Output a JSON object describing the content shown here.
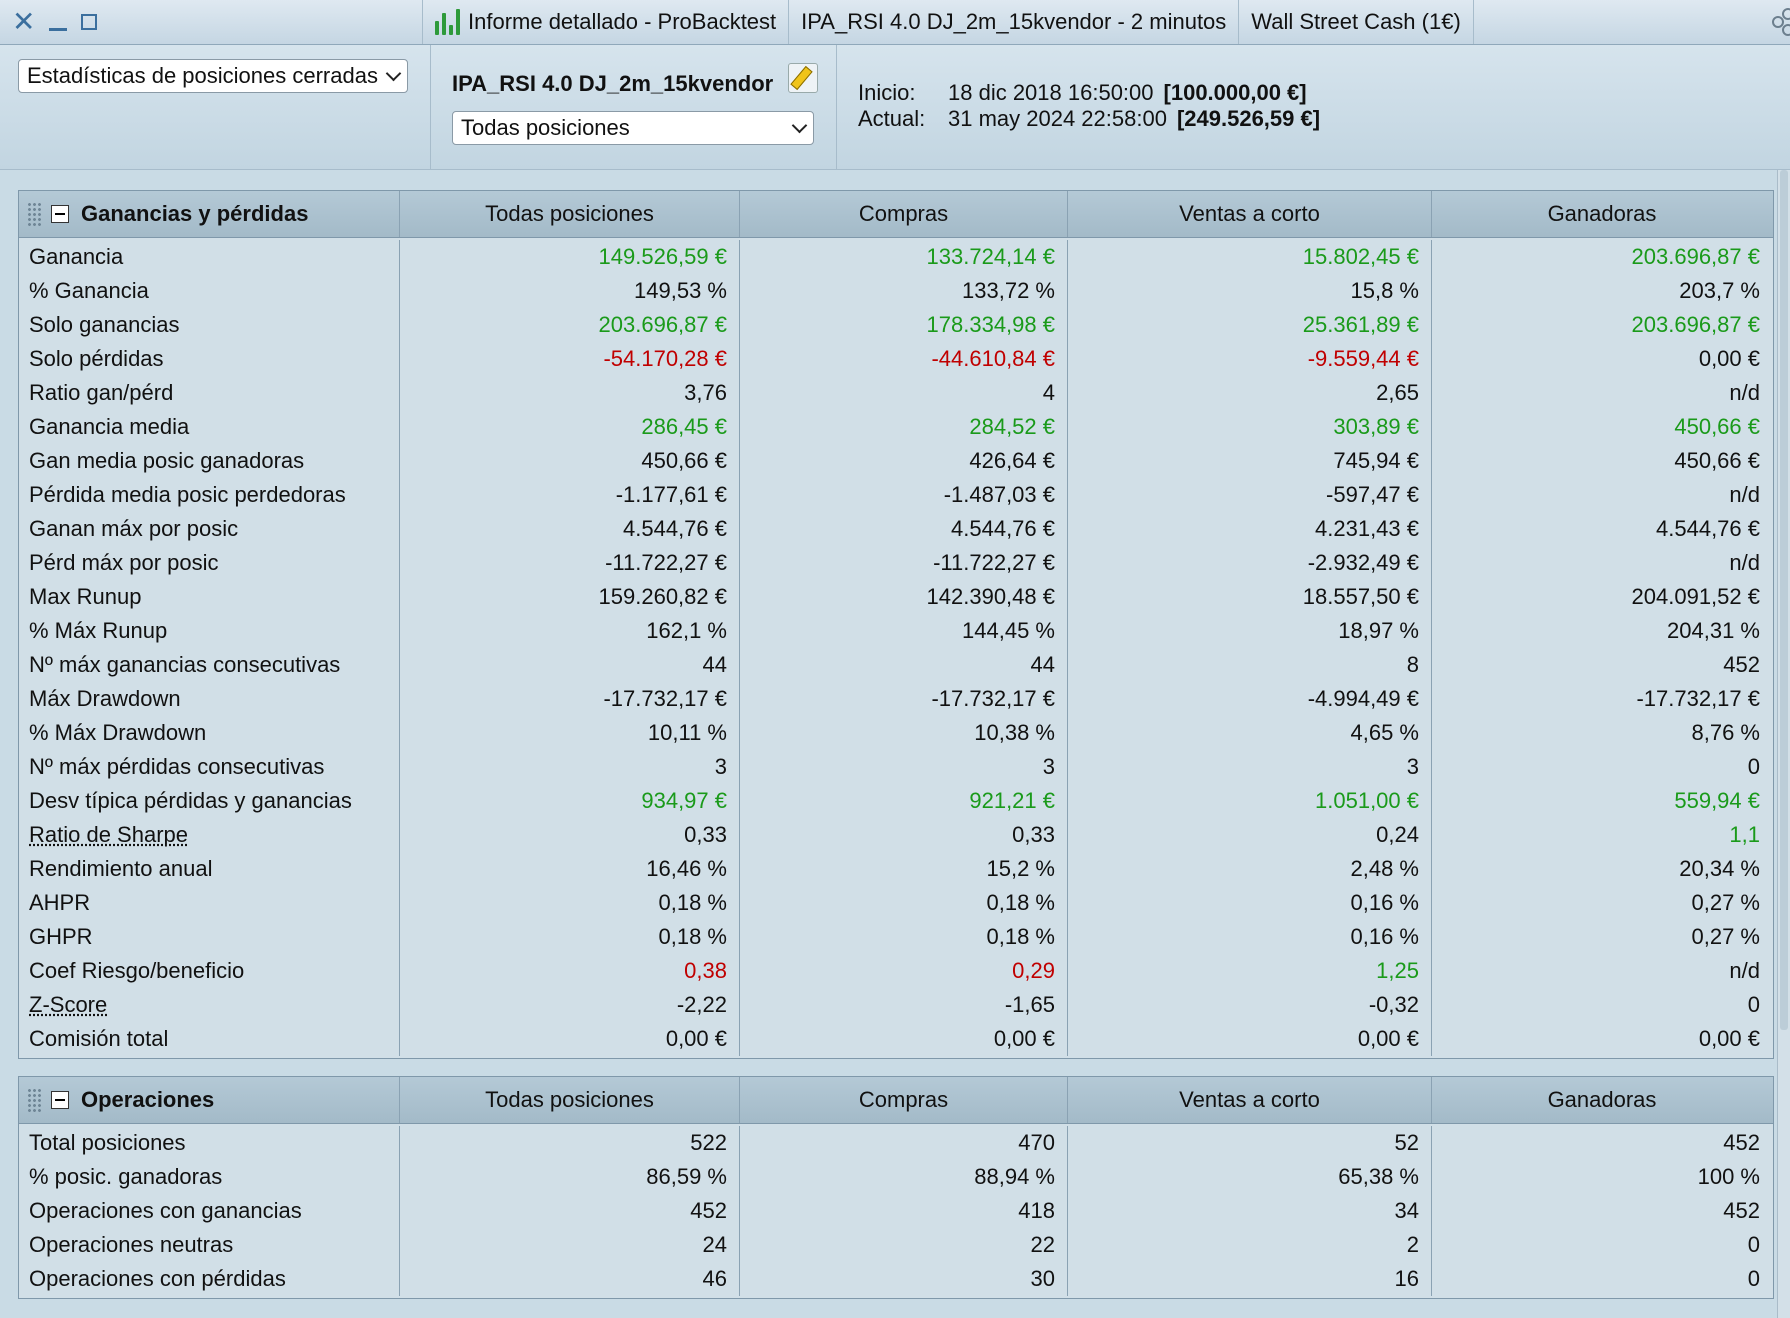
{
  "titlebar": {
    "tabs": [
      {
        "label": "Informe detallado - ProBacktest"
      },
      {
        "label": "IPA_RSI 4.0 DJ_2m_15kvendor - 2 minutos"
      },
      {
        "label": "Wall Street Cash (1€)"
      }
    ]
  },
  "header": {
    "stats_select": "Estadísticas de posiciones cerradas",
    "system_name": "IPA_RSI 4.0 DJ_2m_15kvendor",
    "positions_select": "Todas posiciones",
    "inicio_label": "Inicio:",
    "inicio_date": "18 dic 2018 16:50:00",
    "inicio_value": "[100.000,00 €]",
    "actual_label": "Actual:",
    "actual_date": "31 may 2024 22:58:00",
    "actual_value": "[249.526,59 €]"
  },
  "colors": {
    "positive": "#1a9a1a",
    "negative": "#c00000"
  },
  "columns": [
    "Todas posiciones",
    "Compras",
    "Ventas a corto",
    "Ganadoras"
  ],
  "section1": {
    "title": "Ganancias y pérdidas",
    "rows": [
      {
        "label": "Ganancia",
        "values": [
          "149.526,59 €",
          "133.724,14 €",
          "15.802,45 €",
          "203.696,87 €"
        ],
        "colors": [
          "pos",
          "pos",
          "pos",
          "pos"
        ]
      },
      {
        "label": "% Ganancia",
        "values": [
          "149,53 %",
          "133,72 %",
          "15,8 %",
          "203,7 %"
        ],
        "colors": [
          "",
          "",
          "",
          ""
        ]
      },
      {
        "label": "Solo ganancias",
        "values": [
          "203.696,87 €",
          "178.334,98 €",
          "25.361,89 €",
          "203.696,87 €"
        ],
        "colors": [
          "pos",
          "pos",
          "pos",
          "pos"
        ]
      },
      {
        "label": "Solo pérdidas",
        "values": [
          "-54.170,28 €",
          "-44.610,84 €",
          "-9.559,44 €",
          "0,00 €"
        ],
        "colors": [
          "neg",
          "neg",
          "neg",
          ""
        ]
      },
      {
        "label": "Ratio gan/pérd",
        "values": [
          "3,76",
          "4",
          "2,65",
          "n/d"
        ],
        "colors": [
          "",
          "",
          "",
          ""
        ]
      },
      {
        "label": "Ganancia media",
        "values": [
          "286,45 €",
          "284,52 €",
          "303,89 €",
          "450,66 €"
        ],
        "colors": [
          "pos",
          "pos",
          "pos",
          "pos"
        ]
      },
      {
        "label": "Gan media posic ganadoras",
        "values": [
          "450,66 €",
          "426,64 €",
          "745,94 €",
          "450,66 €"
        ],
        "colors": [
          "",
          "",
          "",
          ""
        ]
      },
      {
        "label": "Pérdida media posic perdedoras",
        "values": [
          "-1.177,61 €",
          "-1.487,03 €",
          "-597,47 €",
          "n/d"
        ],
        "colors": [
          "",
          "",
          "",
          ""
        ]
      },
      {
        "label": "Ganan máx por posic",
        "values": [
          "4.544,76 €",
          "4.544,76 €",
          "4.231,43 €",
          "4.544,76 €"
        ],
        "colors": [
          "",
          "",
          "",
          ""
        ]
      },
      {
        "label": "Pérd máx por posic",
        "values": [
          "-11.722,27 €",
          "-11.722,27 €",
          "-2.932,49 €",
          "n/d"
        ],
        "colors": [
          "",
          "",
          "",
          ""
        ]
      },
      {
        "label": "Max Runup",
        "values": [
          "159.260,82 €",
          "142.390,48 €",
          "18.557,50 €",
          "204.091,52 €"
        ],
        "colors": [
          "",
          "",
          "",
          ""
        ]
      },
      {
        "label": "% Máx Runup",
        "values": [
          "162,1 %",
          "144,45 %",
          "18,97 %",
          "204,31 %"
        ],
        "colors": [
          "",
          "",
          "",
          ""
        ]
      },
      {
        "label": "Nº máx ganancias consecutivas",
        "values": [
          "44",
          "44",
          "8",
          "452"
        ],
        "colors": [
          "",
          "",
          "",
          ""
        ]
      },
      {
        "label": "Máx Drawdown",
        "values": [
          "-17.732,17 €",
          "-17.732,17 €",
          "-4.994,49 €",
          "-17.732,17 €"
        ],
        "colors": [
          "",
          "",
          "",
          ""
        ]
      },
      {
        "label": "% Máx Drawdown",
        "values": [
          "10,11 %",
          "10,38 %",
          "4,65 %",
          "8,76 %"
        ],
        "colors": [
          "",
          "",
          "",
          ""
        ]
      },
      {
        "label": "Nº máx pérdidas consecutivas",
        "values": [
          "3",
          "3",
          "3",
          "0"
        ],
        "colors": [
          "",
          "",
          "",
          ""
        ]
      },
      {
        "label": "Desv típica pérdidas y ganancias",
        "values": [
          "934,97 €",
          "921,21 €",
          "1.051,00 €",
          "559,94 €"
        ],
        "colors": [
          "pos",
          "pos",
          "pos",
          "pos"
        ]
      },
      {
        "label": "Ratio de Sharpe",
        "underline": true,
        "values": [
          "0,33",
          "0,33",
          "0,24",
          "1,1"
        ],
        "colors": [
          "",
          "",
          "",
          "pos"
        ]
      },
      {
        "label": "Rendimiento anual",
        "values": [
          "16,46 %",
          "15,2 %",
          "2,48 %",
          "20,34 %"
        ],
        "colors": [
          "",
          "",
          "",
          ""
        ]
      },
      {
        "label": "AHPR",
        "values": [
          "0,18 %",
          "0,18 %",
          "0,16 %",
          "0,27 %"
        ],
        "colors": [
          "",
          "",
          "",
          ""
        ]
      },
      {
        "label": "GHPR",
        "values": [
          "0,18 %",
          "0,18 %",
          "0,16 %",
          "0,27 %"
        ],
        "colors": [
          "",
          "",
          "",
          ""
        ]
      },
      {
        "label": "Coef Riesgo/beneficio",
        "values": [
          "0,38",
          "0,29",
          "1,25",
          "n/d"
        ],
        "colors": [
          "neg",
          "neg",
          "pos",
          ""
        ]
      },
      {
        "label": "Z-Score",
        "underline": true,
        "values": [
          "-2,22",
          "-1,65",
          "-0,32",
          "0"
        ],
        "colors": [
          "",
          "",
          "",
          ""
        ]
      },
      {
        "label": "Comisión total",
        "values": [
          "0,00 €",
          "0,00 €",
          "0,00 €",
          "0,00 €"
        ],
        "colors": [
          "",
          "",
          "",
          ""
        ]
      }
    ]
  },
  "section2": {
    "title": "Operaciones",
    "rows": [
      {
        "label": "Total posiciones",
        "values": [
          "522",
          "470",
          "52",
          "452"
        ],
        "colors": [
          "",
          "",
          "",
          ""
        ]
      },
      {
        "label": "% posic. ganadoras",
        "values": [
          "86,59 %",
          "88,94 %",
          "65,38 %",
          "100 %"
        ],
        "colors": [
          "",
          "",
          "",
          ""
        ]
      },
      {
        "label": "Operaciones con ganancias",
        "values": [
          "452",
          "418",
          "34",
          "452"
        ],
        "colors": [
          "",
          "",
          "",
          ""
        ]
      },
      {
        "label": "Operaciones neutras",
        "values": [
          "24",
          "22",
          "2",
          "0"
        ],
        "colors": [
          "",
          "",
          "",
          ""
        ]
      },
      {
        "label": "Operaciones con pérdidas",
        "values": [
          "46",
          "30",
          "16",
          "0"
        ],
        "colors": [
          "",
          "",
          "",
          ""
        ]
      }
    ]
  }
}
